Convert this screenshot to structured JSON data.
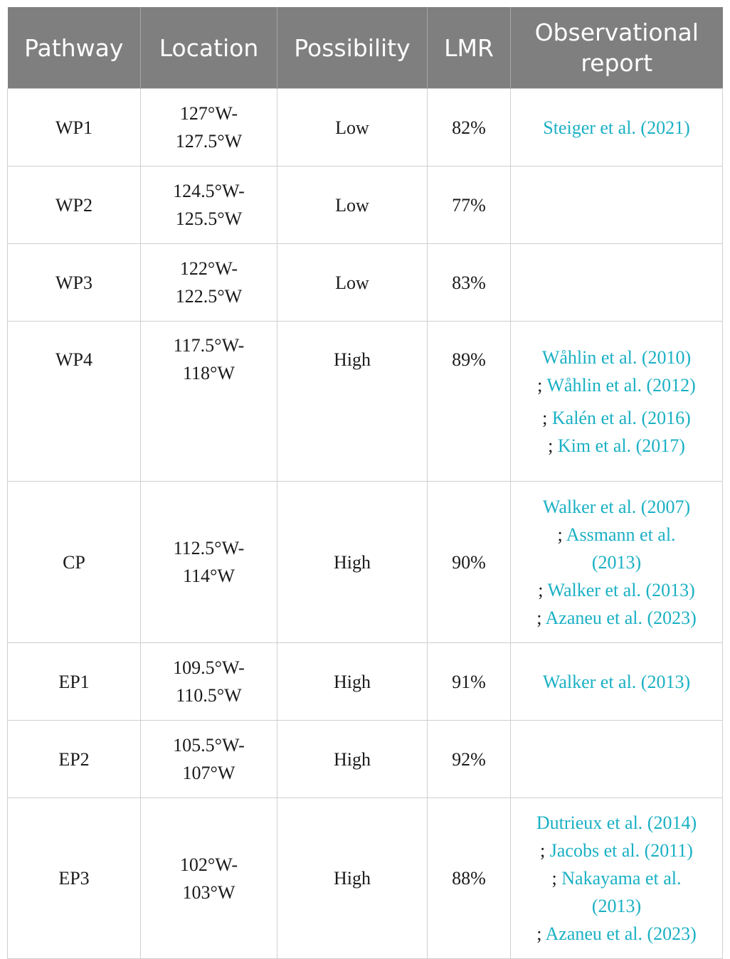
{
  "headers": {
    "pathway": "Pathway",
    "location": "Location",
    "possibility": "Possibility",
    "lmr": "LMR",
    "report": "Observational report"
  },
  "rows": [
    {
      "pathway": "WP1",
      "location_a": "127°W-",
      "location_b": "127.5°W",
      "possibility": "Low",
      "lmr": "82%",
      "refs": [
        "Steiger et al. (2021)"
      ]
    },
    {
      "pathway": "WP2",
      "location_a": "124.5°W-",
      "location_b": "125.5°W",
      "possibility": "Low",
      "lmr": "77%",
      "refs": []
    },
    {
      "pathway": "WP3",
      "location_a": "122°W-",
      "location_b": "122.5°W",
      "possibility": "Low",
      "lmr": "83%",
      "refs": []
    },
    {
      "pathway": "WP4",
      "location_a": "117.5°W-",
      "location_b": "118°W",
      "possibility": "High",
      "lmr": "89%",
      "refs": [
        "Wåhlin et al. (2010)",
        "Wåhlin et al. (2012)",
        "Kalén et al. (2016)",
        "Kim et al. (2017)"
      ]
    },
    {
      "pathway": "CP",
      "location_a": "112.5°W-",
      "location_b": "114°W",
      "possibility": "High",
      "lmr": "90%",
      "refs": [
        "Walker et al. (2007)",
        "Assmann et al.",
        "(2013)",
        "Walker et al. (2013)",
        "Azaneu et al. (2023)"
      ]
    },
    {
      "pathway": "EP1",
      "location_a": "109.5°W-",
      "location_b": "110.5°W",
      "possibility": "High",
      "lmr": "91%",
      "refs": [
        "Walker et al. (2013)"
      ]
    },
    {
      "pathway": "EP2",
      "location_a": "105.5°W-",
      "location_b": "107°W",
      "possibility": "High",
      "lmr": "92%",
      "refs": []
    },
    {
      "pathway": "EP3",
      "location_a": "102°W-",
      "location_b": "103°W",
      "possibility": "High",
      "lmr": "88%",
      "refs": [
        "Dutrieux et al. (2014)",
        "Jacobs et al. (2011)",
        "Nakayama et al.",
        "(2013)",
        "Azaneu et al. (2023)"
      ]
    }
  ],
  "separator": ";"
}
